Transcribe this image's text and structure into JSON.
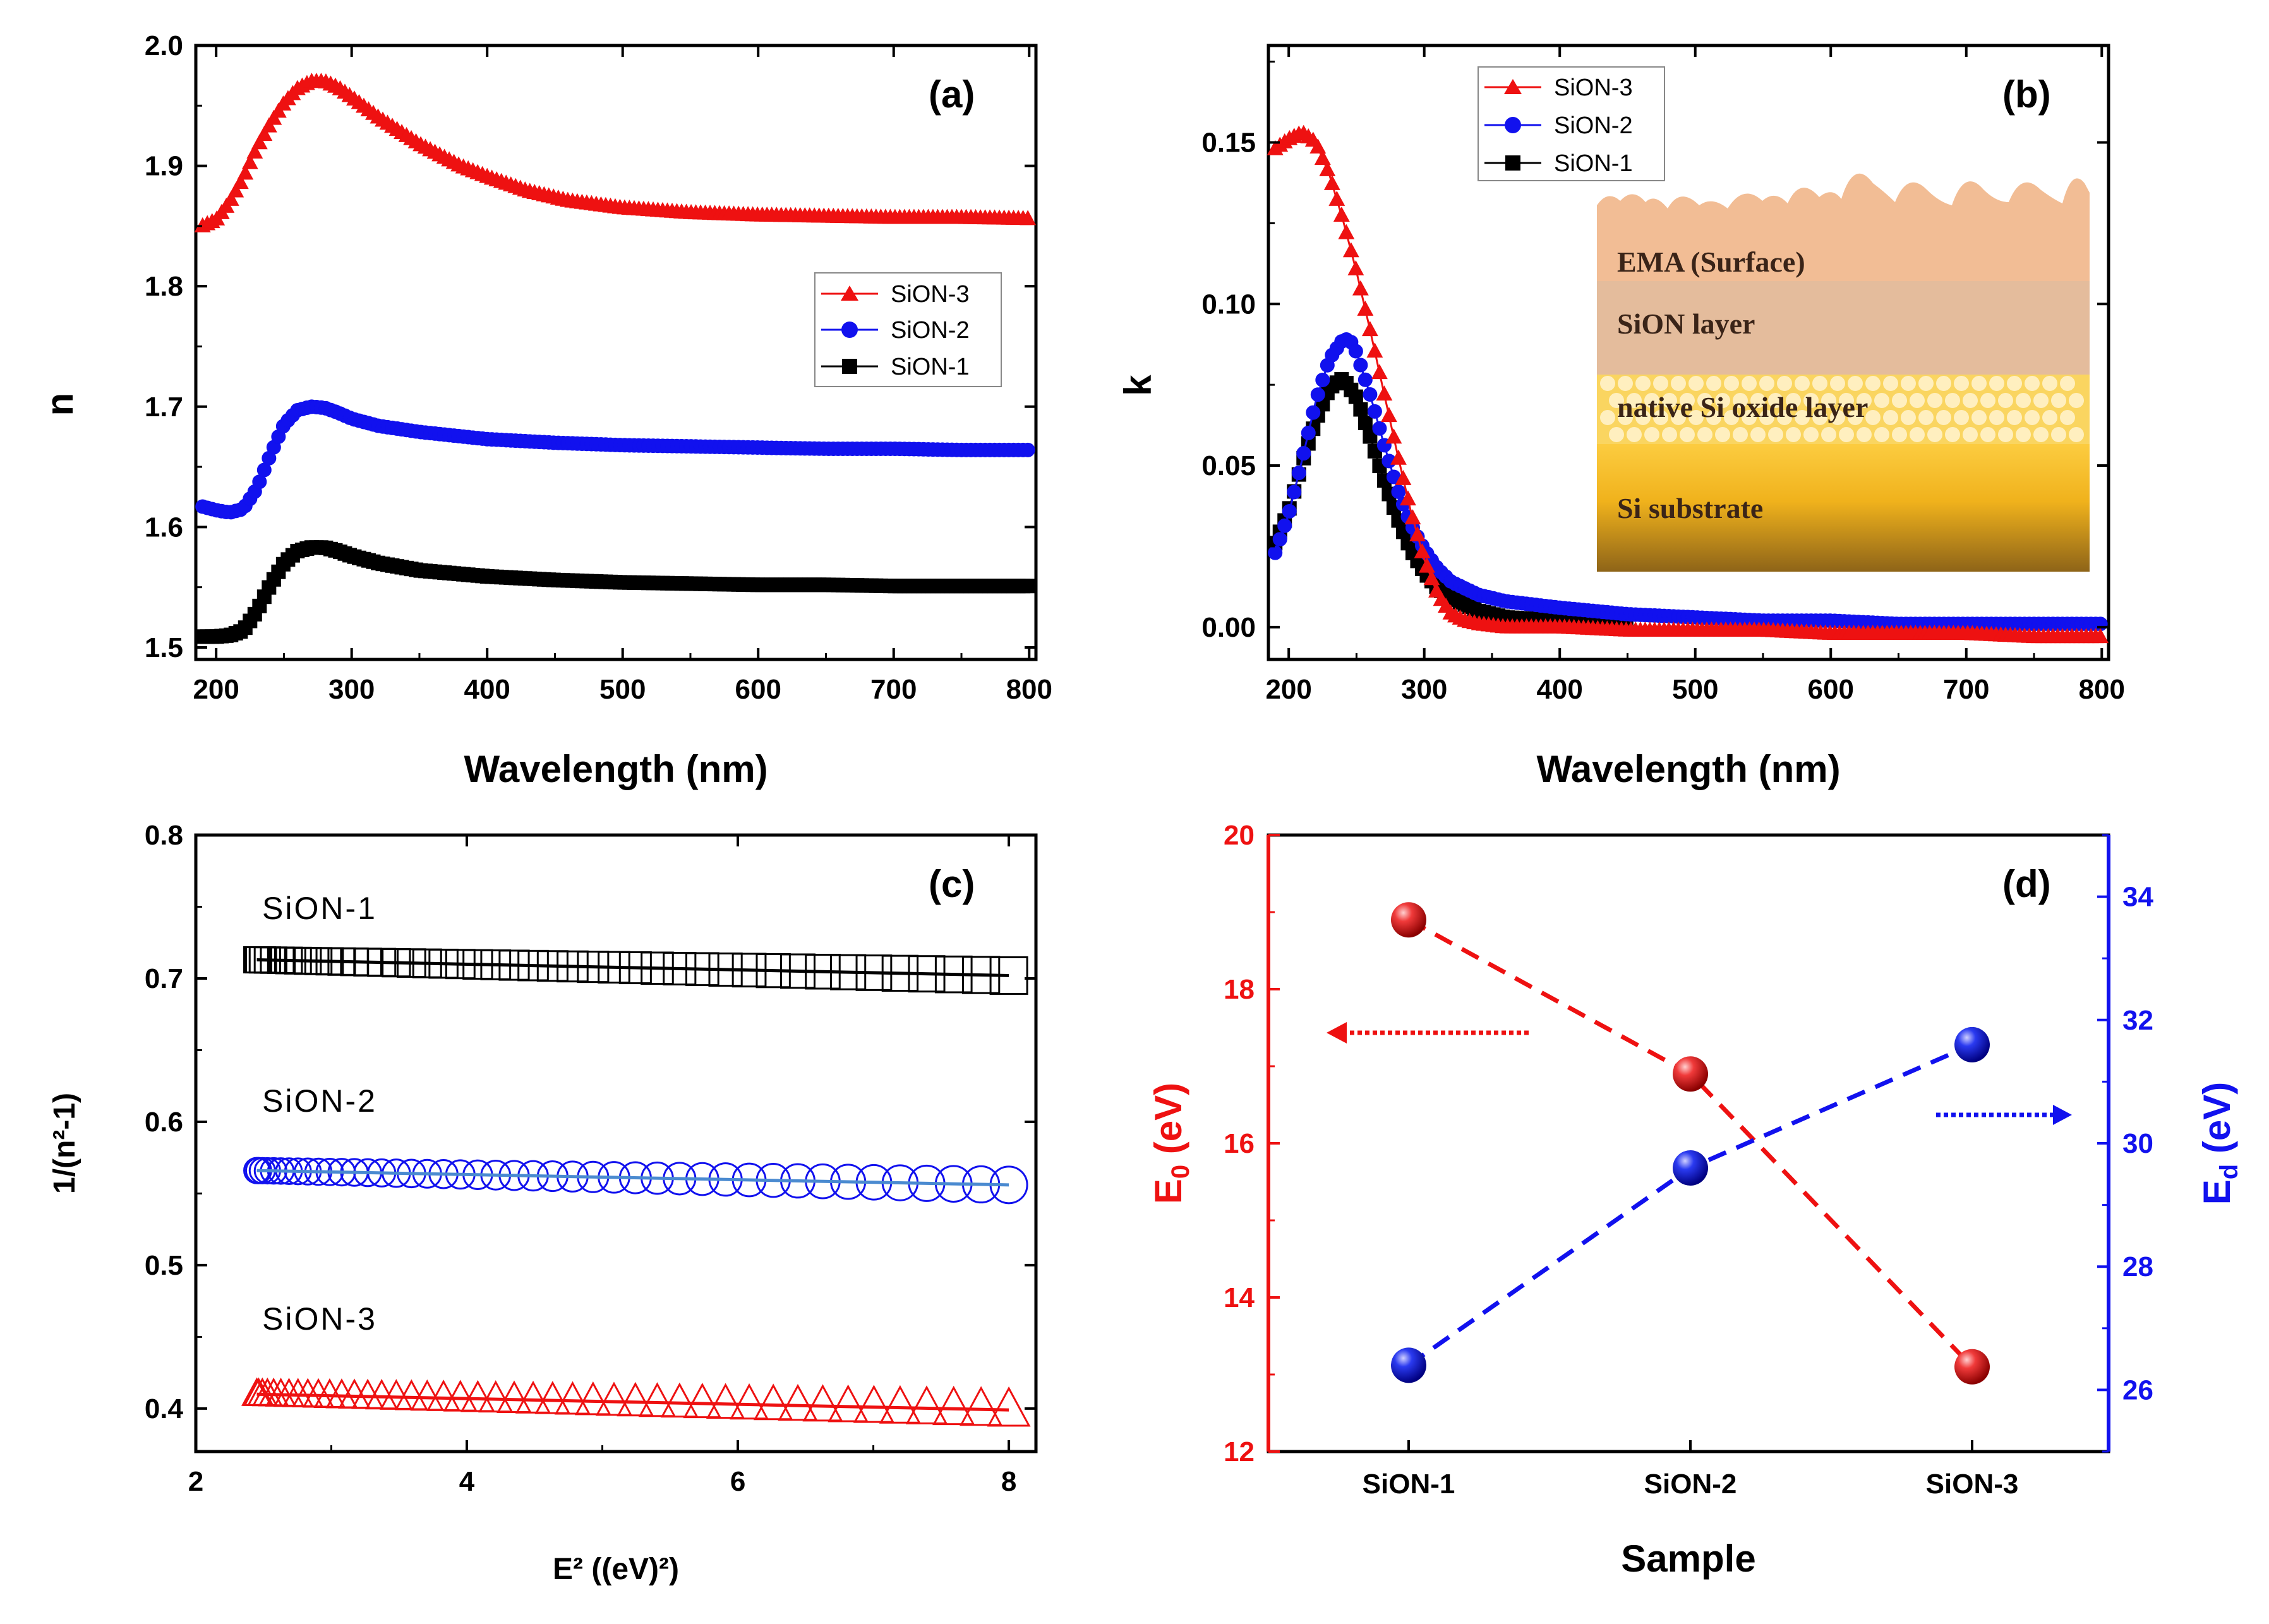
{
  "colors": {
    "red": "#ee1111",
    "blue": "#1111ee",
    "black": "#000000",
    "fit_blue": "#4a8ad0"
  },
  "chart_data": [
    {
      "panel": "(a)",
      "type": "line",
      "xlabel": "Wavelength (nm)",
      "ylabel": "n",
      "xlim": [
        185,
        805
      ],
      "ylim": [
        1.49,
        2.0
      ],
      "xticks": [
        200,
        300,
        400,
        500,
        600,
        700,
        800
      ],
      "yticks": [
        1.5,
        1.6,
        1.7,
        1.8,
        1.9,
        2.0
      ],
      "legend": [
        "SiON-3",
        "SiON-2",
        "SiON-1"
      ],
      "legend_position": "center-right",
      "series": [
        {
          "name": "SiON-3",
          "color": "#ee1111",
          "marker": "triangle",
          "x": [
            190,
            200,
            210,
            220,
            230,
            240,
            250,
            260,
            270,
            280,
            290,
            300,
            320,
            350,
            380,
            400,
            430,
            460,
            500,
            550,
            600,
            650,
            700,
            750,
            800
          ],
          "y": [
            1.85,
            1.855,
            1.87,
            1.89,
            1.915,
            1.935,
            1.952,
            1.964,
            1.97,
            1.97,
            1.965,
            1.957,
            1.94,
            1.918,
            1.9,
            1.891,
            1.879,
            1.871,
            1.865,
            1.861,
            1.859,
            1.858,
            1.857,
            1.857,
            1.856
          ]
        },
        {
          "name": "SiON-2",
          "color": "#1111ee",
          "marker": "circle",
          "x": [
            190,
            200,
            210,
            220,
            230,
            240,
            250,
            260,
            270,
            280,
            290,
            300,
            320,
            350,
            400,
            450,
            500,
            550,
            600,
            650,
            700,
            750,
            800
          ],
          "y": [
            1.617,
            1.614,
            1.612,
            1.615,
            1.632,
            1.66,
            1.685,
            1.697,
            1.7,
            1.699,
            1.695,
            1.69,
            1.684,
            1.679,
            1.673,
            1.67,
            1.668,
            1.667,
            1.666,
            1.665,
            1.665,
            1.664,
            1.664
          ]
        },
        {
          "name": "SiON-1",
          "color": "#000000",
          "marker": "square",
          "x": [
            190,
            200,
            210,
            220,
            230,
            240,
            250,
            260,
            270,
            280,
            290,
            300,
            320,
            350,
            400,
            450,
            500,
            550,
            600,
            650,
            700,
            750,
            800
          ],
          "y": [
            1.509,
            1.509,
            1.51,
            1.514,
            1.53,
            1.552,
            1.57,
            1.58,
            1.583,
            1.583,
            1.58,
            1.576,
            1.57,
            1.564,
            1.559,
            1.556,
            1.554,
            1.553,
            1.552,
            1.552,
            1.551,
            1.551,
            1.551
          ]
        }
      ]
    },
    {
      "panel": "(b)",
      "type": "line",
      "xlabel": "Wavelength (nm)",
      "ylabel": "k",
      "xlim": [
        185,
        805
      ],
      "ylim": [
        -0.01,
        0.18
      ],
      "xticks": [
        200,
        300,
        400,
        500,
        600,
        700,
        800
      ],
      "yticks": [
        0.0,
        0.05,
        0.1,
        0.15
      ],
      "ytick_labels": [
        "0.00",
        "0.05",
        "0.10",
        "0.15"
      ],
      "legend": [
        "SiON-3",
        "SiON-2",
        "SiON-1"
      ],
      "legend_position": "top-center",
      "series": [
        {
          "name": "SiON-3",
          "color": "#ee1111",
          "marker": "triangle",
          "x": [
            190,
            200,
            210,
            220,
            230,
            240,
            250,
            260,
            270,
            280,
            290,
            300,
            310,
            320,
            330,
            340,
            360,
            400,
            450,
            500,
            550,
            600,
            650,
            700,
            750,
            800
          ],
          "y": [
            0.148,
            0.151,
            0.153,
            0.15,
            0.14,
            0.126,
            0.11,
            0.092,
            0.073,
            0.054,
            0.036,
            0.021,
            0.01,
            0.004,
            0.002,
            0.001,
            0.0,
            0.0,
            -0.001,
            -0.001,
            -0.001,
            -0.002,
            -0.002,
            -0.002,
            -0.003,
            -0.003
          ]
        },
        {
          "name": "SiON-2",
          "color": "#1111ee",
          "marker": "circle",
          "x": [
            190,
            200,
            210,
            220,
            230,
            240,
            245,
            250,
            260,
            270,
            280,
            290,
            300,
            310,
            320,
            340,
            360,
            400,
            450,
            500,
            550,
            600,
            650,
            700,
            750,
            800
          ],
          "y": [
            0.023,
            0.035,
            0.052,
            0.07,
            0.083,
            0.089,
            0.089,
            0.085,
            0.072,
            0.057,
            0.043,
            0.032,
            0.024,
            0.018,
            0.014,
            0.01,
            0.008,
            0.006,
            0.004,
            0.003,
            0.002,
            0.002,
            0.001,
            0.001,
            0.001,
            0.001
          ]
        },
        {
          "name": "SiON-1",
          "color": "#000000",
          "marker": "square",
          "x": [
            190,
            200,
            210,
            220,
            230,
            240,
            250,
            260,
            270,
            280,
            290,
            300,
            310,
            320,
            340,
            360,
            400,
            450
          ],
          "y": [
            0.026,
            0.036,
            0.051,
            0.064,
            0.074,
            0.077,
            0.071,
            0.059,
            0.046,
            0.034,
            0.024,
            0.017,
            0.012,
            0.009,
            0.005,
            0.003,
            0.002,
            0.001
          ]
        }
      ],
      "inset": {
        "type": "layer-schematic",
        "layers": [
          "EMA (Surface)",
          "SiON layer",
          "native Si oxide layer",
          "Si substrate"
        ]
      }
    },
    {
      "panel": "(c)",
      "type": "scatter",
      "xlabel": "E² ((eV)²)",
      "ylabel": "1/(n²-1)",
      "xlim": [
        2,
        8.2
      ],
      "ylim": [
        0.37,
        0.8
      ],
      "xticks": [
        2,
        4,
        6,
        8
      ],
      "yticks": [
        0.4,
        0.5,
        0.6,
        0.7,
        0.8
      ],
      "series": [
        {
          "name": "SiON-1",
          "color": "#000000",
          "marker": "open-square",
          "x_start": 2.45,
          "x_end": 8.0,
          "y_start": 0.713,
          "y_end": 0.702,
          "n_points": 44,
          "fit": {
            "x": [
              2.45,
              8.0
            ],
            "y": [
              0.713,
              0.702
            ],
            "color": "#000000"
          }
        },
        {
          "name": "SiON-2",
          "color": "#1111ee",
          "marker": "open-circle",
          "x_start": 2.45,
          "x_end": 8.0,
          "y_start": 0.566,
          "y_end": 0.556,
          "n_points": 44,
          "fit": {
            "x": [
              2.45,
              8.0
            ],
            "y": [
              0.566,
              0.556
            ],
            "color": "#4a8ad0"
          }
        },
        {
          "name": "SiON-3",
          "color": "#ee1111",
          "marker": "open-triangle",
          "x_start": 2.45,
          "x_end": 8.0,
          "y_start": 0.41,
          "y_end": 0.399,
          "n_points": 44,
          "fit": {
            "x": [
              2.45,
              8.0
            ],
            "y": [
              0.41,
              0.399
            ],
            "color": "#ee1111"
          }
        }
      ],
      "labels": [
        "SiON-1",
        "SiON-2",
        "SiON-3"
      ]
    },
    {
      "panel": "(d)",
      "type": "line",
      "xlabel": "Sample",
      "categories": [
        "SiON-1",
        "SiON-2",
        "SiON-3"
      ],
      "ylabel_left": "E0 (eV)",
      "ylabel_right": "Ed (eV)",
      "ylim_left": [
        12,
        20
      ],
      "ylim_right": [
        25,
        35
      ],
      "yticks_left": [
        12,
        14,
        16,
        18,
        20
      ],
      "yticks_right": [
        26,
        28,
        30,
        32,
        34
      ],
      "series": [
        {
          "name": "E0",
          "axis": "left",
          "color": "#ee1111",
          "values": [
            18.9,
            16.9,
            13.1
          ]
        },
        {
          "name": "Ed",
          "axis": "right",
          "color": "#1111ee",
          "values": [
            26.4,
            29.6,
            31.6
          ]
        }
      ]
    }
  ]
}
